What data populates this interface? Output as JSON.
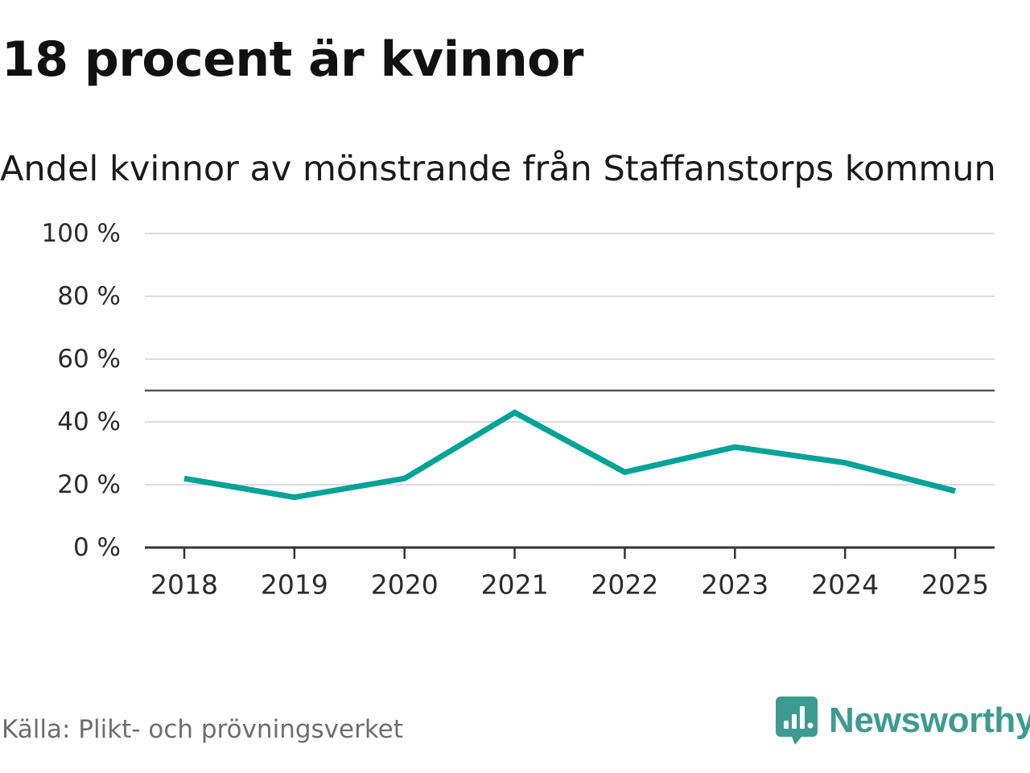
{
  "header": {
    "title": "18 procent är kvinnor",
    "subtitle": "Andel kvinnor av mönstrande från Staffanstorps kommun"
  },
  "chart_data": {
    "type": "line",
    "title": "18 procent är kvinnor",
    "subtitle": "Andel kvinnor av mönstrande från Staffanstorps kommun",
    "xlabel": "",
    "ylabel": "",
    "categories": [
      "2018",
      "2019",
      "2020",
      "2021",
      "2022",
      "2023",
      "2024",
      "2025"
    ],
    "series": [
      {
        "values": [
          22,
          16,
          22,
          43,
          24,
          32,
          27,
          18
        ],
        "color": "#00a398"
      }
    ],
    "ylim": [
      0,
      100
    ],
    "yticks": [
      0,
      20,
      40,
      60,
      80,
      100
    ],
    "ytick_labels": [
      "0 %",
      "20 %",
      "40 %",
      "60 %",
      "80 %",
      "100 %"
    ],
    "reference_line": 50,
    "grid": true,
    "legend": "none"
  },
  "footer": {
    "source": "Källa: Plikt- och prövningsverket",
    "brand": "Newsworthy"
  },
  "colors": {
    "line": "#00a398",
    "brand": "#3d9b92",
    "grid": "#dddddd",
    "reference": "#555555",
    "axis": "#333333"
  },
  "icons": {
    "brand_logo": "newsworthy-logo-icon"
  }
}
